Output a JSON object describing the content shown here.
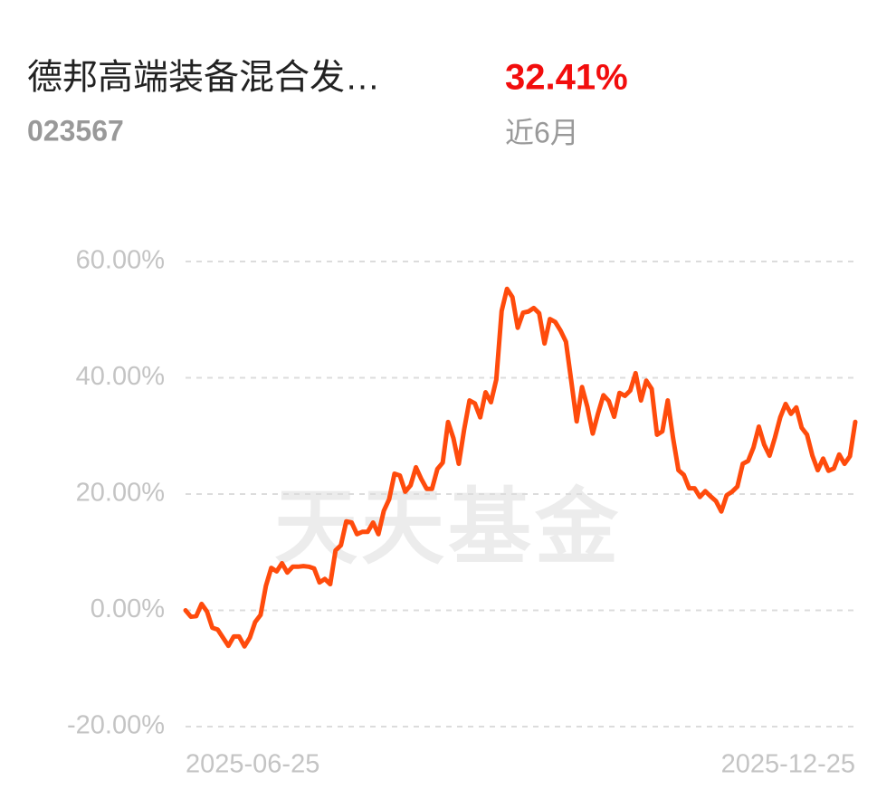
{
  "header": {
    "title": "德邦高端装备混合发…",
    "code": "023567",
    "return": "32.41%",
    "period": "近6月"
  },
  "chart_data": {
    "type": "line",
    "watermark": "天天基金",
    "categories": [
      "2025-06-25",
      null,
      null,
      null,
      null,
      null,
      null,
      null,
      null,
      null,
      null,
      null,
      null,
      null,
      null,
      null,
      null,
      null,
      null,
      null,
      null,
      null,
      null,
      null,
      null,
      null,
      null,
      null,
      null,
      null,
      null,
      null,
      null,
      null,
      null,
      null,
      null,
      null,
      null,
      null,
      null,
      null,
      null,
      null,
      null,
      null,
      null,
      null,
      null,
      null,
      null,
      null,
      null,
      null,
      null,
      null,
      null,
      null,
      null,
      null,
      null,
      null,
      null,
      null,
      null,
      null,
      null,
      null,
      null,
      null,
      null,
      null,
      null,
      null,
      null,
      null,
      null,
      null,
      null,
      null,
      null,
      null,
      null,
      null,
      null,
      null,
      null,
      null,
      null,
      null,
      null,
      null,
      null,
      null,
      null,
      null,
      null,
      null,
      null,
      null,
      null,
      null,
      null,
      null,
      null,
      null,
      null,
      null,
      null,
      null,
      null,
      null,
      null,
      null,
      null,
      null,
      null,
      null,
      null,
      null,
      null,
      null,
      null,
      null,
      null,
      "2025-12-25"
    ],
    "values": [
      0,
      -1.1,
      -1,
      1.1,
      -0.2,
      -3,
      -3.3,
      -4.7,
      -6.1,
      -4.5,
      -4.5,
      -6.2,
      -4.7,
      -2,
      -0.8,
      4.2,
      7.3,
      6.7,
      8.1,
      6.5,
      7.5,
      7.5,
      7.6,
      7.5,
      7.2,
      4.8,
      5.4,
      4.5,
      10.3,
      11.2,
      15.3,
      15.1,
      13.1,
      13.5,
      13.5,
      15.1,
      13.1,
      17.1,
      19.1,
      23.5,
      23.2,
      20.4,
      21.5,
      24.6,
      22.6,
      20.9,
      20.9,
      24.3,
      25.4,
      32.4,
      29.6,
      25.2,
      31.1,
      36.1,
      35.6,
      33.2,
      37.5,
      35.8,
      39.7,
      51.5,
      55.3,
      53.9,
      48.6,
      51.2,
      51.4,
      52,
      51.1,
      45.9,
      50.1,
      49.6,
      48.1,
      46.2,
      39.4,
      32.5,
      38.4,
      35,
      30.4,
      33.9,
      37,
      36,
      33.3,
      37.4,
      36.9,
      37.8,
      40.8,
      36.1,
      39.5,
      38.1,
      30.2,
      30.8,
      36.1,
      29.6,
      24.1,
      23.3,
      21,
      21,
      19.5,
      20.5,
      19.6,
      18.8,
      17,
      19.8,
      20.4,
      21.3,
      25.2,
      25.7,
      28,
      31.6,
      28.5,
      26.6,
      29.7,
      33.2,
      35.5,
      33.8,
      34.9,
      31.4,
      30.2,
      26.6,
      24.1,
      26.1,
      24,
      24.4,
      26.8,
      25.2,
      26.5,
      32.41
    ],
    "color": "#ff4b0c",
    "ylim": [
      -20,
      60
    ],
    "yticks": [
      {
        "value": -20,
        "label": "-20.00%"
      },
      {
        "value": 0,
        "label": "0.00%"
      },
      {
        "value": 20,
        "label": "20.00%"
      },
      {
        "value": 40,
        "label": "40.00%"
      },
      {
        "value": 60,
        "label": "60.00%"
      }
    ],
    "grid": true
  }
}
